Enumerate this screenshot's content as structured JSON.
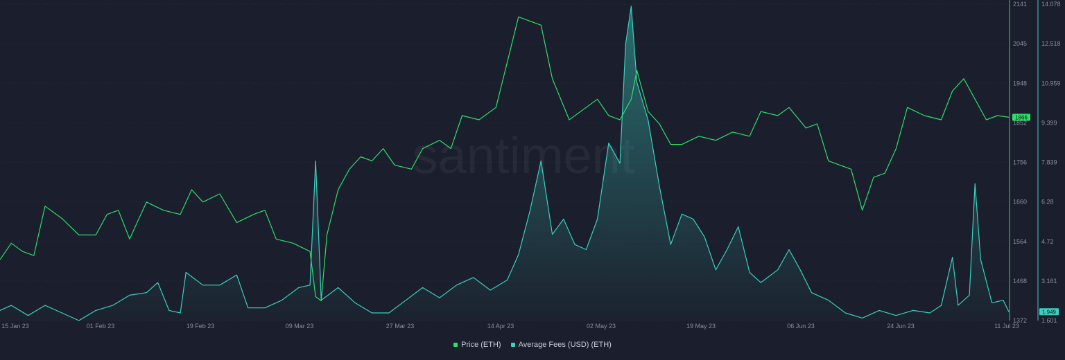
{
  "watermark": "santiment",
  "colors": {
    "background": "#1b1e2c",
    "price": "#2ee06a",
    "fees": "#3ad1c0",
    "grid": "#2a2e3f",
    "tick_text": "#8a8fa3"
  },
  "legend": [
    {
      "label": "Price (ETH)",
      "color": "#2ee06a"
    },
    {
      "label": "Average Fees (USD) (ETH)",
      "color": "#3ad1c0"
    }
  ],
  "chart_data": {
    "type": "line",
    "x_axis": {
      "range": [
        "2023-01-13",
        "2023-07-11"
      ],
      "tick_labels": [
        "15 Jan 23",
        "01 Feb 23",
        "19 Feb 23",
        "09 Mar 23",
        "27 Mar 23",
        "14 Apr 23",
        "02 May 23",
        "19 May 23",
        "06 Jun 23",
        "24 Jun 23",
        "11 Jul 23"
      ]
    },
    "y_axis_price": {
      "range": [
        1372,
        2141
      ],
      "tick_labels": [
        "2141",
        "2045",
        "1948",
        "1852",
        "1756",
        "1660",
        "1564",
        "1468",
        "1372"
      ],
      "current_value_label": "1866"
    },
    "y_axis_fees": {
      "range": [
        1.601,
        14.078
      ],
      "tick_labels": [
        "14.078",
        "12.518",
        "10.959",
        "9.399",
        "7.839",
        "6.28",
        "4.72",
        "3.161",
        "1.601"
      ],
      "current_value_label": "1.949"
    },
    "series": [
      {
        "name": "Price (ETH)",
        "axis": "left",
        "points": [
          [
            "2023-01-13",
            1520
          ],
          [
            "2023-01-15",
            1560
          ],
          [
            "2023-01-17",
            1540
          ],
          [
            "2023-01-19",
            1530
          ],
          [
            "2023-01-21",
            1650
          ],
          [
            "2023-01-24",
            1620
          ],
          [
            "2023-01-27",
            1580
          ],
          [
            "2023-01-30",
            1580
          ],
          [
            "2023-02-01",
            1630
          ],
          [
            "2023-02-03",
            1640
          ],
          [
            "2023-02-05",
            1570
          ],
          [
            "2023-02-08",
            1660
          ],
          [
            "2023-02-11",
            1640
          ],
          [
            "2023-02-14",
            1630
          ],
          [
            "2023-02-16",
            1690
          ],
          [
            "2023-02-18",
            1660
          ],
          [
            "2023-02-21",
            1680
          ],
          [
            "2023-02-24",
            1610
          ],
          [
            "2023-02-27",
            1630
          ],
          [
            "2023-03-01",
            1640
          ],
          [
            "2023-03-03",
            1570
          ],
          [
            "2023-03-06",
            1560
          ],
          [
            "2023-03-09",
            1540
          ],
          [
            "2023-03-10",
            1430
          ],
          [
            "2023-03-11",
            1420
          ],
          [
            "2023-03-12",
            1580
          ],
          [
            "2023-03-14",
            1690
          ],
          [
            "2023-03-16",
            1740
          ],
          [
            "2023-03-18",
            1770
          ],
          [
            "2023-03-20",
            1760
          ],
          [
            "2023-03-22",
            1790
          ],
          [
            "2023-03-24",
            1750
          ],
          [
            "2023-03-27",
            1740
          ],
          [
            "2023-03-29",
            1790
          ],
          [
            "2023-04-01",
            1810
          ],
          [
            "2023-04-03",
            1790
          ],
          [
            "2023-04-05",
            1870
          ],
          [
            "2023-04-08",
            1860
          ],
          [
            "2023-04-11",
            1890
          ],
          [
            "2023-04-13",
            2000
          ],
          [
            "2023-04-15",
            2110
          ],
          [
            "2023-04-17",
            2100
          ],
          [
            "2023-04-19",
            2090
          ],
          [
            "2023-04-21",
            1960
          ],
          [
            "2023-04-24",
            1860
          ],
          [
            "2023-04-27",
            1890
          ],
          [
            "2023-04-29",
            1910
          ],
          [
            "2023-05-01",
            1870
          ],
          [
            "2023-05-03",
            1860
          ],
          [
            "2023-05-05",
            1910
          ],
          [
            "2023-05-06",
            1980
          ],
          [
            "2023-05-08",
            1880
          ],
          [
            "2023-05-10",
            1850
          ],
          [
            "2023-05-12",
            1800
          ],
          [
            "2023-05-14",
            1800
          ],
          [
            "2023-05-17",
            1820
          ],
          [
            "2023-05-20",
            1810
          ],
          [
            "2023-05-23",
            1830
          ],
          [
            "2023-05-26",
            1820
          ],
          [
            "2023-05-28",
            1880
          ],
          [
            "2023-05-31",
            1870
          ],
          [
            "2023-06-02",
            1890
          ],
          [
            "2023-06-05",
            1840
          ],
          [
            "2023-06-07",
            1850
          ],
          [
            "2023-06-09",
            1760
          ],
          [
            "2023-06-11",
            1750
          ],
          [
            "2023-06-13",
            1740
          ],
          [
            "2023-06-15",
            1640
          ],
          [
            "2023-06-17",
            1720
          ],
          [
            "2023-06-19",
            1730
          ],
          [
            "2023-06-21",
            1790
          ],
          [
            "2023-06-23",
            1890
          ],
          [
            "2023-06-26",
            1870
          ],
          [
            "2023-06-29",
            1860
          ],
          [
            "2023-07-01",
            1930
          ],
          [
            "2023-07-03",
            1960
          ],
          [
            "2023-07-05",
            1910
          ],
          [
            "2023-07-07",
            1860
          ],
          [
            "2023-07-09",
            1870
          ],
          [
            "2023-07-11",
            1866
          ]
        ]
      },
      {
        "name": "Average Fees (USD) (ETH)",
        "axis": "right",
        "points": [
          [
            "2023-01-13",
            2.0
          ],
          [
            "2023-01-15",
            2.2
          ],
          [
            "2023-01-18",
            1.8
          ],
          [
            "2023-01-21",
            2.2
          ],
          [
            "2023-01-24",
            1.9
          ],
          [
            "2023-01-27",
            1.6
          ],
          [
            "2023-01-30",
            2.0
          ],
          [
            "2023-02-02",
            2.2
          ],
          [
            "2023-02-05",
            2.6
          ],
          [
            "2023-02-08",
            2.7
          ],
          [
            "2023-02-10",
            3.1
          ],
          [
            "2023-02-12",
            2.0
          ],
          [
            "2023-02-14",
            1.9
          ],
          [
            "2023-02-15",
            3.5
          ],
          [
            "2023-02-18",
            3.0
          ],
          [
            "2023-02-21",
            3.0
          ],
          [
            "2023-02-24",
            3.4
          ],
          [
            "2023-02-26",
            2.1
          ],
          [
            "2023-03-01",
            2.1
          ],
          [
            "2023-03-04",
            2.4
          ],
          [
            "2023-03-07",
            2.9
          ],
          [
            "2023-03-09",
            3.0
          ],
          [
            "2023-03-10",
            7.9
          ],
          [
            "2023-03-11",
            2.4
          ],
          [
            "2023-03-14",
            2.9
          ],
          [
            "2023-03-17",
            2.3
          ],
          [
            "2023-03-20",
            1.9
          ],
          [
            "2023-03-23",
            1.9
          ],
          [
            "2023-03-26",
            2.4
          ],
          [
            "2023-03-29",
            2.9
          ],
          [
            "2023-04-01",
            2.5
          ],
          [
            "2023-04-04",
            3.0
          ],
          [
            "2023-04-07",
            3.3
          ],
          [
            "2023-04-10",
            2.8
          ],
          [
            "2023-04-13",
            3.2
          ],
          [
            "2023-04-15",
            4.2
          ],
          [
            "2023-04-17",
            5.9
          ],
          [
            "2023-04-19",
            7.9
          ],
          [
            "2023-04-21",
            5.0
          ],
          [
            "2023-04-23",
            5.6
          ],
          [
            "2023-04-25",
            4.6
          ],
          [
            "2023-04-27",
            4.4
          ],
          [
            "2023-04-29",
            5.6
          ],
          [
            "2023-05-01",
            8.6
          ],
          [
            "2023-05-03",
            7.8
          ],
          [
            "2023-05-04",
            12.5
          ],
          [
            "2023-05-05",
            14.0
          ],
          [
            "2023-05-06",
            11.0
          ],
          [
            "2023-05-08",
            9.5
          ],
          [
            "2023-05-10",
            6.9
          ],
          [
            "2023-05-12",
            4.6
          ],
          [
            "2023-05-14",
            5.8
          ],
          [
            "2023-05-16",
            5.6
          ],
          [
            "2023-05-18",
            4.9
          ],
          [
            "2023-05-20",
            3.6
          ],
          [
            "2023-05-22",
            4.4
          ],
          [
            "2023-05-24",
            5.3
          ],
          [
            "2023-05-26",
            3.5
          ],
          [
            "2023-05-28",
            3.1
          ],
          [
            "2023-05-31",
            3.6
          ],
          [
            "2023-06-02",
            4.4
          ],
          [
            "2023-06-04",
            3.6
          ],
          [
            "2023-06-06",
            2.7
          ],
          [
            "2023-06-09",
            2.4
          ],
          [
            "2023-06-12",
            1.9
          ],
          [
            "2023-06-15",
            1.7
          ],
          [
            "2023-06-18",
            2.0
          ],
          [
            "2023-06-21",
            1.8
          ],
          [
            "2023-06-24",
            2.0
          ],
          [
            "2023-06-27",
            1.9
          ],
          [
            "2023-06-29",
            2.2
          ],
          [
            "2023-07-01",
            4.1
          ],
          [
            "2023-07-02",
            2.2
          ],
          [
            "2023-07-04",
            2.6
          ],
          [
            "2023-07-05",
            7.0
          ],
          [
            "2023-07-06",
            4.0
          ],
          [
            "2023-07-08",
            2.3
          ],
          [
            "2023-07-10",
            2.4
          ],
          [
            "2023-07-11",
            1.949
          ]
        ]
      }
    ]
  }
}
